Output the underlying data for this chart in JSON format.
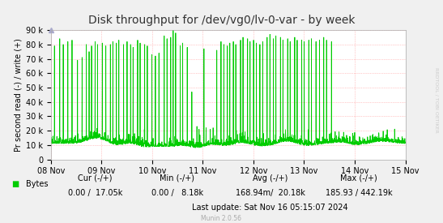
{
  "title": "Disk throughput for /dev/vg0/lv-0-var - by week",
  "ylabel": "Pr second read (-) / write (+)",
  "xlabel_dates": [
    "08 Nov",
    "09 Nov",
    "10 Nov",
    "11 Nov",
    "12 Nov",
    "13 Nov",
    "14 Nov",
    "15 Nov"
  ],
  "ylim": [
    0,
    90000
  ],
  "yticks": [
    0,
    10000,
    20000,
    30000,
    40000,
    50000,
    60000,
    70000,
    80000,
    90000
  ],
  "ytick_labels": [
    "0",
    "10 k",
    "20 k",
    "30 k",
    "40 k",
    "50 k",
    "60 k",
    "70 k",
    "80 k",
    "90 k"
  ],
  "line_color": "#00cc00",
  "background_color": "#f0f0f0",
  "plot_bg_color": "#ffffff",
  "grid_color": "#ff9999",
  "legend_label": "Bytes",
  "legend_color": "#00cc00",
  "cur_label": "Cur (-/+)",
  "cur_val": "0.00 /  17.05k",
  "min_label": "Min (-/+)",
  "min_val": "0.00 /   8.18k",
  "avg_label": "Avg (-/+)",
  "avg_val": "168.94m/  20.18k",
  "max_label": "Max (-/+)",
  "max_val": "185.93 / 442.19k",
  "last_update": "Last update: Sat Nov 16 05:15:07 2024",
  "munin_version": "Munin 2.0.56",
  "rrdtool_label": "RRDTOOL / TOBI OETIKER",
  "title_fontsize": 10,
  "axis_fontsize": 7,
  "tick_fontsize": 7,
  "legend_fontsize": 7,
  "seed": 42,
  "n_points": 2016
}
